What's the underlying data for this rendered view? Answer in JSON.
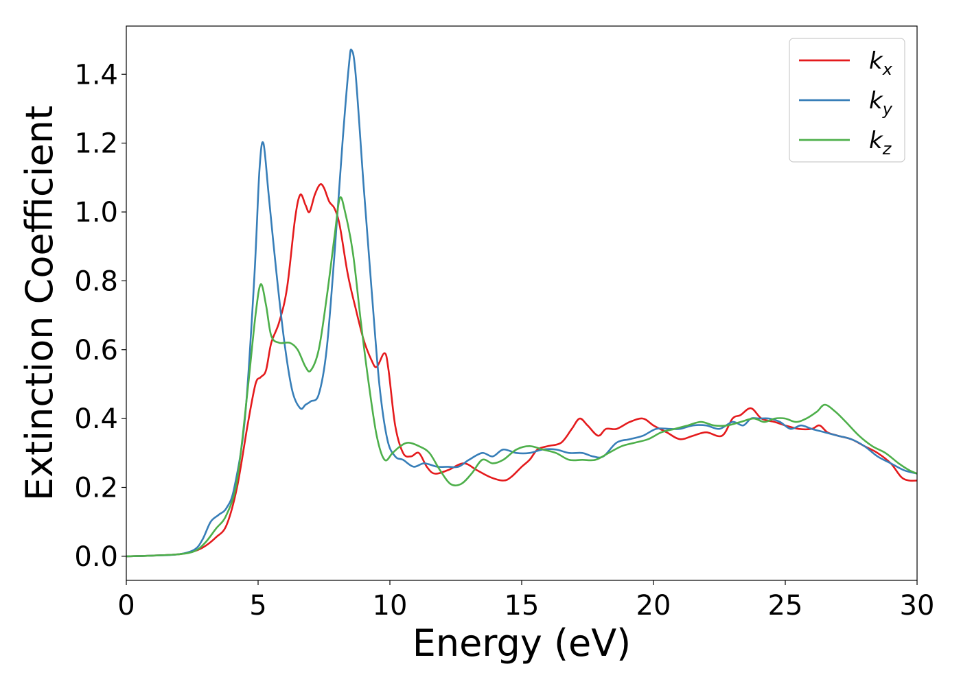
{
  "chart_data": {
    "type": "line",
    "xlabel": "Energy (eV)",
    "ylabel": "Extinction Coefficient",
    "xlim": [
      0,
      30
    ],
    "ylim": [
      -0.07,
      1.54
    ],
    "xticks": [
      0,
      5,
      10,
      15,
      20,
      25,
      30
    ],
    "yticks": [
      0.0,
      0.2,
      0.4,
      0.6,
      0.8,
      1.0,
      1.2,
      1.4
    ],
    "xtick_labels": [
      "0",
      "5",
      "10",
      "15",
      "20",
      "25",
      "30"
    ],
    "ytick_labels": [
      "0.0",
      "0.2",
      "0.4",
      "0.6",
      "0.8",
      "1.0",
      "1.2",
      "1.4"
    ],
    "grid": false,
    "legend_position": "top-right",
    "series": [
      {
        "name": "k_x",
        "label_base": "k",
        "label_sub": "x",
        "color": "#e41a1c",
        "points": [
          [
            0,
            0
          ],
          [
            1,
            0.002
          ],
          [
            2,
            0.006
          ],
          [
            2.6,
            0.015
          ],
          [
            3,
            0.03
          ],
          [
            3.4,
            0.055
          ],
          [
            3.8,
            0.09
          ],
          [
            4.2,
            0.2
          ],
          [
            4.6,
            0.38
          ],
          [
            4.9,
            0.5
          ],
          [
            5.1,
            0.52
          ],
          [
            5.3,
            0.54
          ],
          [
            5.5,
            0.62
          ],
          [
            5.8,
            0.68
          ],
          [
            6.1,
            0.78
          ],
          [
            6.4,
            0.98
          ],
          [
            6.6,
            1.05
          ],
          [
            6.8,
            1.02
          ],
          [
            6.95,
            1.0
          ],
          [
            7.15,
            1.05
          ],
          [
            7.35,
            1.08
          ],
          [
            7.5,
            1.07
          ],
          [
            7.7,
            1.03
          ],
          [
            7.9,
            1.01
          ],
          [
            8.1,
            0.96
          ],
          [
            8.4,
            0.82
          ],
          [
            8.7,
            0.72
          ],
          [
            9.0,
            0.63
          ],
          [
            9.3,
            0.57
          ],
          [
            9.5,
            0.55
          ],
          [
            9.8,
            0.59
          ],
          [
            9.95,
            0.54
          ],
          [
            10.2,
            0.38
          ],
          [
            10.5,
            0.3
          ],
          [
            10.8,
            0.29
          ],
          [
            11.1,
            0.3
          ],
          [
            11.4,
            0.26
          ],
          [
            11.7,
            0.24
          ],
          [
            12.2,
            0.25
          ],
          [
            12.8,
            0.27
          ],
          [
            13.3,
            0.25
          ],
          [
            13.8,
            0.23
          ],
          [
            14.3,
            0.22
          ],
          [
            14.6,
            0.23
          ],
          [
            15.0,
            0.26
          ],
          [
            15.3,
            0.28
          ],
          [
            15.6,
            0.31
          ],
          [
            16.0,
            0.32
          ],
          [
            16.5,
            0.33
          ],
          [
            16.9,
            0.37
          ],
          [
            17.2,
            0.4
          ],
          [
            17.5,
            0.38
          ],
          [
            17.9,
            0.35
          ],
          [
            18.2,
            0.37
          ],
          [
            18.6,
            0.37
          ],
          [
            19.1,
            0.39
          ],
          [
            19.6,
            0.4
          ],
          [
            20.0,
            0.38
          ],
          [
            20.5,
            0.36
          ],
          [
            21.0,
            0.34
          ],
          [
            21.5,
            0.35
          ],
          [
            22.0,
            0.36
          ],
          [
            22.6,
            0.35
          ],
          [
            23.0,
            0.4
          ],
          [
            23.3,
            0.41
          ],
          [
            23.7,
            0.43
          ],
          [
            24.1,
            0.4
          ],
          [
            24.6,
            0.39
          ],
          [
            25.0,
            0.38
          ],
          [
            25.5,
            0.37
          ],
          [
            26.0,
            0.37
          ],
          [
            26.3,
            0.38
          ],
          [
            26.6,
            0.36
          ],
          [
            27.0,
            0.35
          ],
          [
            27.5,
            0.34
          ],
          [
            28.0,
            0.32
          ],
          [
            28.5,
            0.3
          ],
          [
            29.0,
            0.27
          ],
          [
            29.4,
            0.23
          ],
          [
            29.7,
            0.22
          ],
          [
            30,
            0.22
          ]
        ]
      },
      {
        "name": "k_y",
        "label_base": "k",
        "label_sub": "y",
        "color": "#377eb8",
        "points": [
          [
            0,
            0
          ],
          [
            1,
            0.002
          ],
          [
            2,
            0.006
          ],
          [
            2.6,
            0.02
          ],
          [
            2.9,
            0.05
          ],
          [
            3.2,
            0.1
          ],
          [
            3.5,
            0.12
          ],
          [
            3.8,
            0.14
          ],
          [
            4.1,
            0.2
          ],
          [
            4.5,
            0.4
          ],
          [
            4.85,
            0.8
          ],
          [
            5.05,
            1.12
          ],
          [
            5.2,
            1.2
          ],
          [
            5.4,
            1.05
          ],
          [
            5.7,
            0.82
          ],
          [
            6.0,
            0.62
          ],
          [
            6.3,
            0.48
          ],
          [
            6.6,
            0.43
          ],
          [
            6.8,
            0.44
          ],
          [
            7.0,
            0.45
          ],
          [
            7.3,
            0.47
          ],
          [
            7.6,
            0.6
          ],
          [
            7.9,
            0.88
          ],
          [
            8.2,
            1.2
          ],
          [
            8.45,
            1.43
          ],
          [
            8.55,
            1.47
          ],
          [
            8.7,
            1.4
          ],
          [
            9.0,
            1.08
          ],
          [
            9.3,
            0.78
          ],
          [
            9.6,
            0.5
          ],
          [
            9.9,
            0.34
          ],
          [
            10.2,
            0.29
          ],
          [
            10.5,
            0.28
          ],
          [
            10.9,
            0.26
          ],
          [
            11.3,
            0.27
          ],
          [
            11.8,
            0.26
          ],
          [
            12.2,
            0.26
          ],
          [
            12.6,
            0.26
          ],
          [
            13.0,
            0.28
          ],
          [
            13.5,
            0.3
          ],
          [
            13.9,
            0.29
          ],
          [
            14.3,
            0.31
          ],
          [
            14.8,
            0.3
          ],
          [
            15.3,
            0.3
          ],
          [
            15.8,
            0.31
          ],
          [
            16.3,
            0.31
          ],
          [
            16.8,
            0.3
          ],
          [
            17.3,
            0.3
          ],
          [
            17.7,
            0.29
          ],
          [
            18.1,
            0.29
          ],
          [
            18.6,
            0.33
          ],
          [
            19.1,
            0.34
          ],
          [
            19.6,
            0.35
          ],
          [
            20.1,
            0.37
          ],
          [
            20.6,
            0.37
          ],
          [
            21.0,
            0.37
          ],
          [
            21.5,
            0.38
          ],
          [
            22.0,
            0.38
          ],
          [
            22.5,
            0.37
          ],
          [
            23.0,
            0.39
          ],
          [
            23.4,
            0.38
          ],
          [
            23.7,
            0.4
          ],
          [
            24.0,
            0.4
          ],
          [
            24.4,
            0.4
          ],
          [
            24.8,
            0.39
          ],
          [
            25.2,
            0.37
          ],
          [
            25.6,
            0.38
          ],
          [
            26.0,
            0.37
          ],
          [
            26.5,
            0.36
          ],
          [
            27.0,
            0.35
          ],
          [
            27.5,
            0.34
          ],
          [
            28.0,
            0.32
          ],
          [
            28.5,
            0.29
          ],
          [
            29.0,
            0.27
          ],
          [
            29.5,
            0.25
          ],
          [
            30,
            0.24
          ]
        ]
      },
      {
        "name": "k_z",
        "label_base": "k",
        "label_sub": "z",
        "color": "#4daf4a",
        "points": [
          [
            0,
            0
          ],
          [
            1,
            0.002
          ],
          [
            2,
            0.006
          ],
          [
            2.6,
            0.015
          ],
          [
            3.0,
            0.04
          ],
          [
            3.4,
            0.08
          ],
          [
            3.8,
            0.12
          ],
          [
            4.2,
            0.22
          ],
          [
            4.6,
            0.48
          ],
          [
            4.9,
            0.7
          ],
          [
            5.1,
            0.79
          ],
          [
            5.3,
            0.73
          ],
          [
            5.5,
            0.64
          ],
          [
            5.8,
            0.62
          ],
          [
            6.2,
            0.62
          ],
          [
            6.5,
            0.6
          ],
          [
            6.8,
            0.55
          ],
          [
            7.0,
            0.54
          ],
          [
            7.3,
            0.6
          ],
          [
            7.6,
            0.75
          ],
          [
            7.9,
            0.93
          ],
          [
            8.1,
            1.04
          ],
          [
            8.3,
            1.0
          ],
          [
            8.6,
            0.88
          ],
          [
            8.9,
            0.68
          ],
          [
            9.2,
            0.5
          ],
          [
            9.5,
            0.35
          ],
          [
            9.8,
            0.28
          ],
          [
            10.1,
            0.3
          ],
          [
            10.4,
            0.32
          ],
          [
            10.7,
            0.33
          ],
          [
            11.1,
            0.32
          ],
          [
            11.5,
            0.3
          ],
          [
            11.9,
            0.25
          ],
          [
            12.3,
            0.21
          ],
          [
            12.7,
            0.21
          ],
          [
            13.1,
            0.24
          ],
          [
            13.5,
            0.28
          ],
          [
            13.9,
            0.27
          ],
          [
            14.3,
            0.28
          ],
          [
            14.8,
            0.31
          ],
          [
            15.3,
            0.32
          ],
          [
            15.8,
            0.31
          ],
          [
            16.3,
            0.3
          ],
          [
            16.8,
            0.28
          ],
          [
            17.3,
            0.28
          ],
          [
            17.8,
            0.28
          ],
          [
            18.3,
            0.3
          ],
          [
            18.8,
            0.32
          ],
          [
            19.3,
            0.33
          ],
          [
            19.8,
            0.34
          ],
          [
            20.3,
            0.36
          ],
          [
            20.8,
            0.37
          ],
          [
            21.3,
            0.38
          ],
          [
            21.8,
            0.39
          ],
          [
            22.3,
            0.38
          ],
          [
            22.8,
            0.38
          ],
          [
            23.3,
            0.39
          ],
          [
            23.8,
            0.4
          ],
          [
            24.2,
            0.39
          ],
          [
            24.6,
            0.4
          ],
          [
            25.0,
            0.4
          ],
          [
            25.4,
            0.39
          ],
          [
            25.8,
            0.4
          ],
          [
            26.2,
            0.42
          ],
          [
            26.5,
            0.44
          ],
          [
            26.9,
            0.42
          ],
          [
            27.3,
            0.39
          ],
          [
            27.8,
            0.35
          ],
          [
            28.3,
            0.32
          ],
          [
            28.8,
            0.3
          ],
          [
            29.3,
            0.27
          ],
          [
            29.7,
            0.25
          ],
          [
            30,
            0.24
          ]
        ]
      }
    ]
  }
}
